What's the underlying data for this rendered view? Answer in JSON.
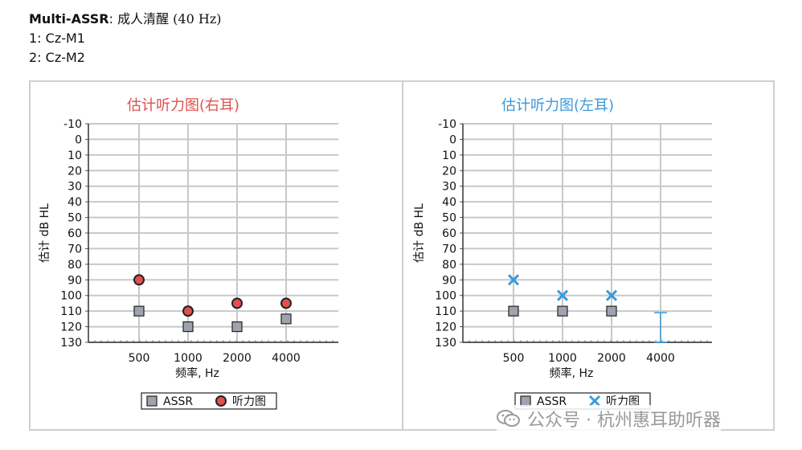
{
  "header": {
    "title_bold": "Multi-ASSR",
    "title_sep": ":",
    "title_rest": "成人清醒 (40 Hz)",
    "line1": "1: Cz-M1",
    "line2": "2: Cz-M2"
  },
  "chart_data": [
    {
      "type": "scatter",
      "title": "估计听力图(右耳)",
      "title_color": "#e05050",
      "xlabel": "频率, Hz",
      "ylabel": "估计 dB HL",
      "categories": [
        "500",
        "1000",
        "2000",
        "4000"
      ],
      "ylim": [
        -10,
        130
      ],
      "y_inverted": true,
      "yticks": [
        "-10",
        "0",
        "10",
        "20",
        "30",
        "40",
        "50",
        "60",
        "70",
        "80",
        "90",
        "100",
        "110",
        "120",
        "130"
      ],
      "grid": true,
      "legend_placement": "bottom-center",
      "series": [
        {
          "name": "ASSR",
          "marker": "square",
          "color": "#9ea3ae",
          "values": [
            110,
            120,
            120,
            115
          ]
        },
        {
          "name": "听力图",
          "marker": "circle",
          "color": "#e05050",
          "values": [
            90,
            110,
            105,
            105
          ]
        }
      ]
    },
    {
      "type": "scatter",
      "title": "估计听力图(左耳)",
      "title_color": "#3a9ad9",
      "xlabel": "频率, Hz",
      "ylabel": "估计 dB HL",
      "categories": [
        "500",
        "1000",
        "2000",
        "4000"
      ],
      "ylim": [
        -10,
        130
      ],
      "y_inverted": true,
      "yticks": [
        "-10",
        "0",
        "10",
        "20",
        "30",
        "40",
        "50",
        "60",
        "70",
        "80",
        "90",
        "100",
        "110",
        "120",
        "130"
      ],
      "grid": true,
      "legend_placement": "bottom-center",
      "series": [
        {
          "name": "ASSR",
          "marker": "square",
          "color": "#9ea3ae",
          "values": [
            110,
            110,
            110,
            null
          ]
        },
        {
          "name": "听力图",
          "marker": "x",
          "color": "#3a9ad9",
          "values": [
            90,
            100,
            100,
            null
          ]
        }
      ],
      "range_bar": {
        "category": "4000",
        "from": 111,
        "to": 130,
        "color": "#3a9ad9"
      }
    }
  ],
  "watermark": "公众号 · 杭州惠耳助听器"
}
